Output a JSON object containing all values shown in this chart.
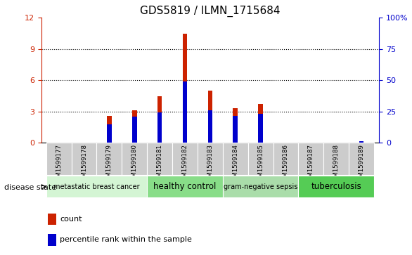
{
  "title": "GDS5819 / ILMN_1715684",
  "samples": [
    "GSM1599177",
    "GSM1599178",
    "GSM1599179",
    "GSM1599180",
    "GSM1599181",
    "GSM1599182",
    "GSM1599183",
    "GSM1599184",
    "GSM1599185",
    "GSM1599186",
    "GSM1599187",
    "GSM1599188",
    "GSM1599189"
  ],
  "counts": [
    0,
    0,
    2.6,
    3.1,
    4.5,
    10.5,
    5.0,
    3.3,
    3.7,
    0,
    0,
    0,
    0
  ],
  "percentile_ranks_left": [
    0,
    0,
    1.8,
    2.5,
    2.9,
    5.9,
    3.1,
    2.55,
    2.8,
    0,
    0,
    0,
    0.18
  ],
  "groups": [
    {
      "label": "metastatic breast cancer",
      "start": 0,
      "end": 3,
      "color": "#d4f5d4"
    },
    {
      "label": "healthy control",
      "start": 4,
      "end": 6,
      "color": "#88dd88"
    },
    {
      "label": "gram-negative sepsis",
      "start": 7,
      "end": 9,
      "color": "#aaddaa"
    },
    {
      "label": "tuberculosis",
      "start": 10,
      "end": 12,
      "color": "#55cc55"
    }
  ],
  "bar_color": "#cc2200",
  "percentile_color": "#0000cc",
  "ylim_left": [
    0,
    12
  ],
  "ylim_right": [
    0,
    100
  ],
  "yticks_left": [
    0,
    3,
    6,
    9,
    12
  ],
  "ytick_labels_left": [
    "0",
    "3",
    "6",
    "9",
    "12"
  ],
  "yticks_right": [
    0,
    25,
    50,
    75,
    100
  ],
  "ytick_labels_right": [
    "0",
    "25",
    "50",
    "75",
    "100%"
  ],
  "tick_fontsize": 8,
  "legend_count": "count",
  "legend_percentile": "percentile rank within the sample",
  "disease_state_label": "disease state"
}
